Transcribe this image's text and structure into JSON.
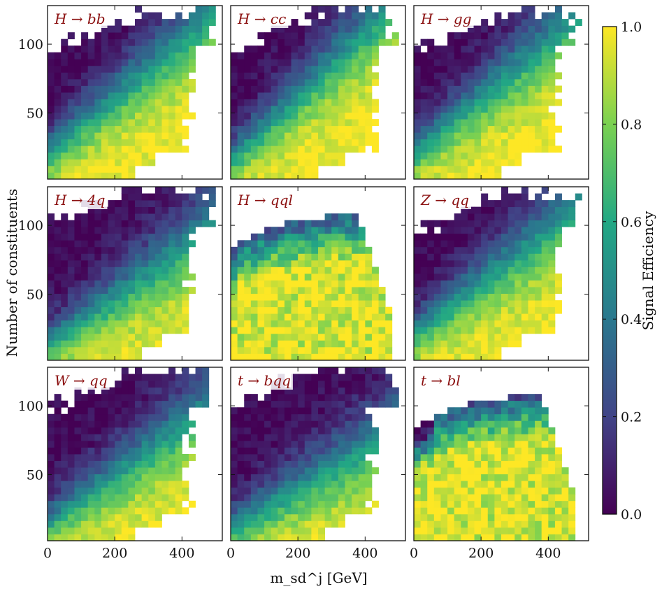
{
  "chart_data": {
    "type": "heatmap",
    "layout": "3x3 grid of 2D histograms",
    "xlabel": "m_sd^j [GeV]",
    "ylabel": "Number of constituents",
    "xticks": [
      0,
      200,
      400
    ],
    "yticks": [
      50,
      100
    ],
    "xlim": [
      0,
      520
    ],
    "ylim": [
      2,
      128
    ],
    "colormap": "viridis",
    "colors": [
      "#440154",
      "#414487",
      "#2a788e",
      "#22a884",
      "#7ad151",
      "#fde725"
    ],
    "label_color": "#8b1010",
    "colorbar": {
      "label": "Signal Efficiency",
      "range": [
        0.0,
        1.0
      ],
      "ticks": [
        "0.0",
        "0.2",
        "0.4",
        "0.6",
        "0.8",
        "1.0"
      ]
    },
    "panels": [
      {
        "label": "H → bb",
        "shape": "std",
        "tilt": 1.4,
        "offset": 0
      },
      {
        "label": "H → cc",
        "shape": "std",
        "tilt": 1.6,
        "offset": 5
      },
      {
        "label": "H → gg",
        "shape": "std",
        "tilt": 1.4,
        "offset": 0
      },
      {
        "label": "H → 4q",
        "shape": "std",
        "tilt": 1.2,
        "offset": 8
      },
      {
        "label": "H → qql",
        "shape": "lep",
        "tilt": 0.0,
        "offset": 0
      },
      {
        "label": "Z → qq",
        "shape": "std",
        "tilt": 1.3,
        "offset": 0
      },
      {
        "label": "W → qq",
        "shape": "std",
        "tilt": 1.2,
        "offset": 6
      },
      {
        "label": "t → bqq",
        "shape": "std",
        "tilt": 1.0,
        "offset": 10
      },
      {
        "label": "t → bl",
        "shape": "lep2",
        "tilt": 0.0,
        "offset": 0
      }
    ]
  }
}
